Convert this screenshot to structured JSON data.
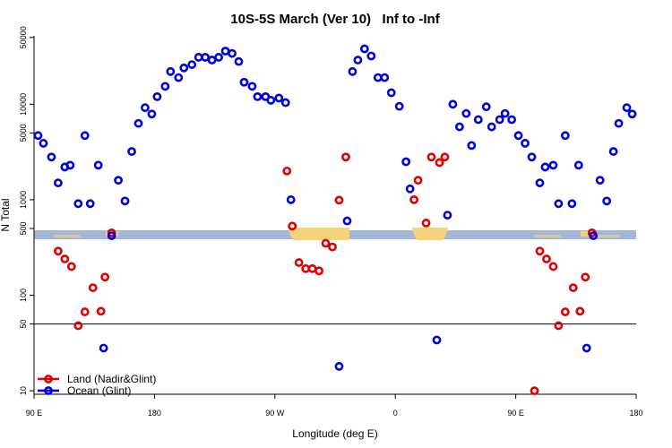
{
  "chart_data": {
    "type": "scatter",
    "title": "10S-5S March (Ver 10)   Inf to -Inf",
    "x_label": "Longitude (deg E)",
    "y_label": "N Total",
    "log_y": true,
    "hline": 50,
    "legend": "bottom-left",
    "xlim": [
      90,
      540
    ],
    "xticks": [
      {
        "value": 90,
        "label": "90 E"
      },
      180,
      {
        "value": 270,
        "label": "90 W"
      },
      {
        "value": 360,
        "label": "0"
      },
      {
        "value": 450,
        "label": "90 E"
      },
      {
        "value": 540,
        "label": "180"
      }
    ],
    "ylim": [
      9.2,
      52000
    ],
    "yticks": [
      10,
      50,
      100,
      500,
      1000,
      5000,
      10000,
      50000
    ],
    "series": [
      {
        "name": "Land (Nadir&Glint)",
        "color": "#e00000",
        "x": [
          108,
          113,
          118,
          123,
          128,
          134,
          140,
          143,
          148,
          279,
          283,
          288,
          293,
          298,
          303,
          308,
          313,
          318,
          323,
          374,
          377,
          383,
          387,
          393,
          397,
          464,
          468,
          473,
          478,
          482,
          487,
          493,
          498,
          502,
          507
        ],
        "values": [
          290,
          240,
          200,
          48,
          67,
          120,
          68,
          155,
          450,
          2000,
          530,
          220,
          190,
          190,
          180,
          350,
          320,
          990,
          2800,
          1000,
          1600,
          570,
          2800,
          2450,
          2800,
          10,
          290,
          240,
          200,
          48,
          67,
          120,
          68,
          155,
          450
        ]
      },
      {
        "name": "Ocean (Glint)",
        "color": "#0000dd",
        "x": [
          93,
          97,
          103,
          108,
          113,
          117,
          123,
          128,
          132,
          138,
          142,
          148,
          153,
          158,
          163,
          168,
          173,
          178,
          182,
          188,
          192,
          198,
          202,
          208,
          213,
          218,
          223,
          228,
          233,
          238,
          243,
          247,
          253,
          257,
          263,
          267,
          273,
          278,
          282,
          318,
          324,
          328,
          332,
          337,
          342,
          347,
          352,
          357,
          363,
          368,
          371,
          391,
          399,
          403,
          408,
          413,
          417,
          422,
          428,
          432,
          438,
          442,
          447,
          452,
          457,
          462,
          468,
          472,
          478,
          482,
          487,
          492,
          497,
          503,
          508,
          513,
          518,
          523,
          527,
          533,
          537
        ],
        "values": [
          4700,
          3900,
          2800,
          1500,
          2200,
          2300,
          910,
          4700,
          910,
          2300,
          28,
          420,
          1600,
          970,
          3200,
          6300,
          9200,
          7900,
          12000,
          15400,
          22000,
          19000,
          24000,
          26000,
          31000,
          31000,
          29000,
          31000,
          36000,
          34000,
          28000,
          17000,
          15400,
          12000,
          12000,
          11000,
          11600,
          10400,
          1000,
          18,
          600,
          22000,
          29000,
          38000,
          32000,
          19000,
          19000,
          13200,
          9500,
          2500,
          1300,
          34,
          690,
          10000,
          5800,
          8000,
          3700,
          6900,
          9400,
          5800,
          6900,
          8000,
          6900,
          4700,
          3900,
          2800,
          1500,
          2200,
          2300,
          910,
          4700,
          910,
          2300,
          28,
          420,
          1600,
          970,
          3200,
          6300,
          9200,
          7900
        ]
      }
    ]
  }
}
